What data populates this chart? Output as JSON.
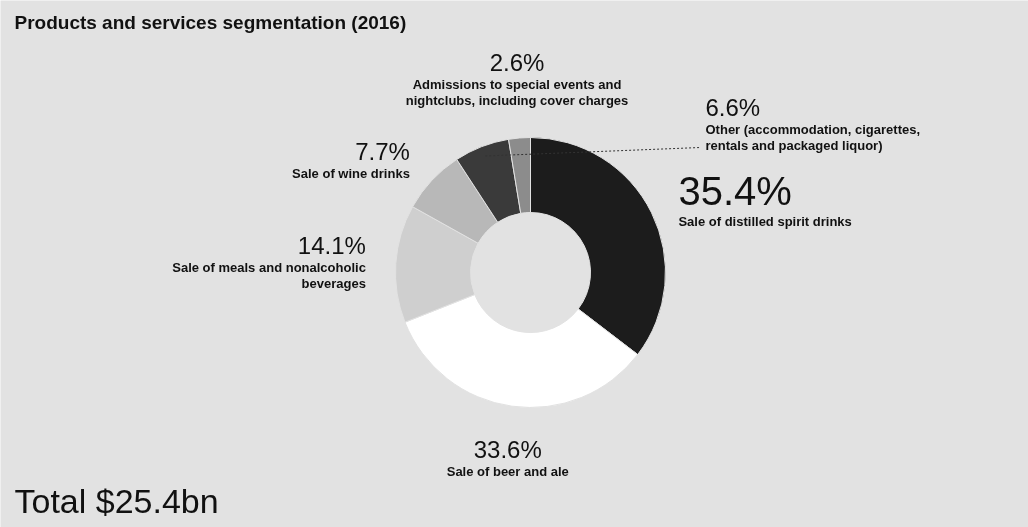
{
  "chart_data": {
    "type": "donut",
    "title": "Products and services segmentation (2016)",
    "categories": [
      "Sale of distilled spirit drinks",
      "Sale of beer and ale",
      "Sale of meals and nonalcoholic beverages",
      "Sale of wine drinks",
      "Other (accommodation, cigarettes, rentals and packaged liquor)",
      "Admissions to special events and nightclubs, including cover charges"
    ],
    "values": [
      35.4,
      33.6,
      14.1,
      7.7,
      6.6,
      2.6
    ],
    "colors": [
      "#1c1c1c",
      "#ffffff",
      "#cfcfcf",
      "#b8b8b8",
      "#3a3a3a",
      "#8c8c8c"
    ],
    "value_labels": [
      "35.4%",
      "33.6%",
      "14.1%",
      "7.7%",
      "6.6%",
      "2.6%"
    ],
    "annotations": [
      "Total $25.4bn"
    ]
  }
}
